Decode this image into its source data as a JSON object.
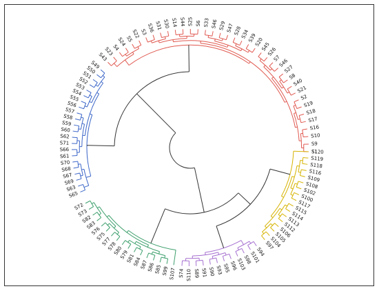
{
  "diagram": {
    "type": "circular-dendrogram",
    "root_color": "#333333",
    "clusters": [
      {
        "name": "red",
        "color": "#e0584f",
        "leaves": [
          "S1",
          "S9",
          "S10",
          "S16",
          "S17",
          "S18",
          "S19",
          "S2",
          "S21",
          "S40",
          "S8",
          "S27",
          "S46",
          "S7",
          "S26",
          "S45",
          "S20",
          "S39",
          "S34",
          "S28",
          "S47",
          "S29",
          "S46",
          "S33",
          "S6",
          "S25",
          "S44",
          "S14",
          "S30",
          "S31",
          "S36",
          "S3",
          "S22",
          "S5",
          "S24",
          "S4",
          "S23",
          "S43"
        ]
      },
      {
        "name": "blue",
        "color": "#3c66c8",
        "leaves": [
          "S49",
          "S50",
          "S51",
          "S52",
          "S53",
          "S54",
          "S55",
          "S56",
          "S57",
          "S58",
          "S59",
          "S60",
          "S62",
          "S71",
          "S66",
          "S61",
          "S70",
          "S68",
          "S67",
          "S69",
          "S63",
          "S65"
        ]
      },
      {
        "name": "green",
        "color": "#3a9e6a",
        "leaves": [
          "S72",
          "S73",
          "S82",
          "S83",
          "S76",
          "S75",
          "S77",
          "S78",
          "S80",
          "S79",
          "S81",
          "S84",
          "S87",
          "S86",
          "S85",
          "S99",
          "S107"
        ]
      },
      {
        "name": "purple",
        "color": "#a56fd0",
        "leaves": [
          "S74",
          "S110",
          "S89",
          "S91",
          "S90",
          "S93",
          "S95",
          "S96",
          "S103",
          "S98",
          "S101",
          "S94"
        ]
      },
      {
        "name": "yellow",
        "color": "#d6b300",
        "leaves": [
          "S97",
          "S104",
          "S105",
          "S106",
          "S112",
          "S113",
          "S114",
          "S115",
          "S117",
          "S100",
          "S102",
          "S108",
          "S109",
          "S116",
          "S118",
          "S119",
          "S120"
        ]
      }
    ]
  }
}
